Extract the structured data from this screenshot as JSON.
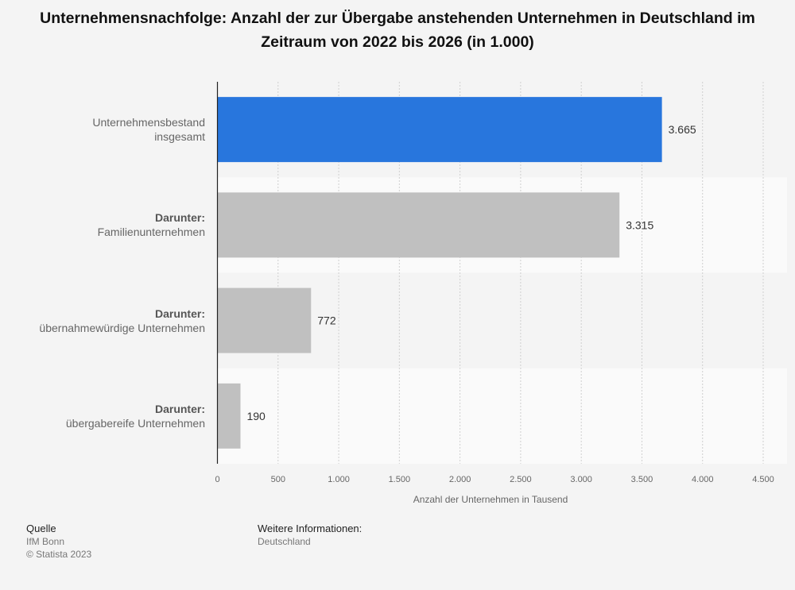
{
  "chart_data": {
    "type": "bar",
    "orientation": "horizontal",
    "title": "Unternehmensnachfolge: Anzahl der zur Übergabe anstehenden Unternehmen in Deutschland im Zeitraum von 2022 bis 2026 (in 1.000)",
    "xlabel": "Anzahl der Unternehmen in Tausend",
    "ylabel": "",
    "categories": [
      {
        "prefix": "",
        "label": "Unternehmensbestand insgesamt"
      },
      {
        "prefix": "Darunter:",
        "label": "Familienunternehmen"
      },
      {
        "prefix": "Darunter:",
        "label": "übernahmewürdige Unternehmen"
      },
      {
        "prefix": "Darunter:",
        "label": "übergabereife Unternehmen"
      }
    ],
    "values": [
      3665,
      3315,
      772,
      190
    ],
    "value_labels": [
      "3.665",
      "3.315",
      "772",
      "190"
    ],
    "xlim": [
      0,
      4500
    ],
    "ticks": [
      0,
      500,
      1000,
      1500,
      2000,
      2500,
      3000,
      3500,
      4000,
      4500
    ],
    "tick_labels": [
      "0",
      "500",
      "1.000",
      "1.500",
      "2.000",
      "2.500",
      "3.000",
      "3.500",
      "4.000",
      "4.500"
    ],
    "bar_colors": [
      "#2876dd",
      "#c0c0c0",
      "#c0c0c0",
      "#c0c0c0"
    ],
    "grid": true
  },
  "footer": {
    "source_heading": "Quelle",
    "source_lines": [
      "IfM Bonn",
      "© Statista 2023"
    ],
    "info_heading": "Weitere Informationen:",
    "info_lines": [
      "Deutschland"
    ]
  }
}
